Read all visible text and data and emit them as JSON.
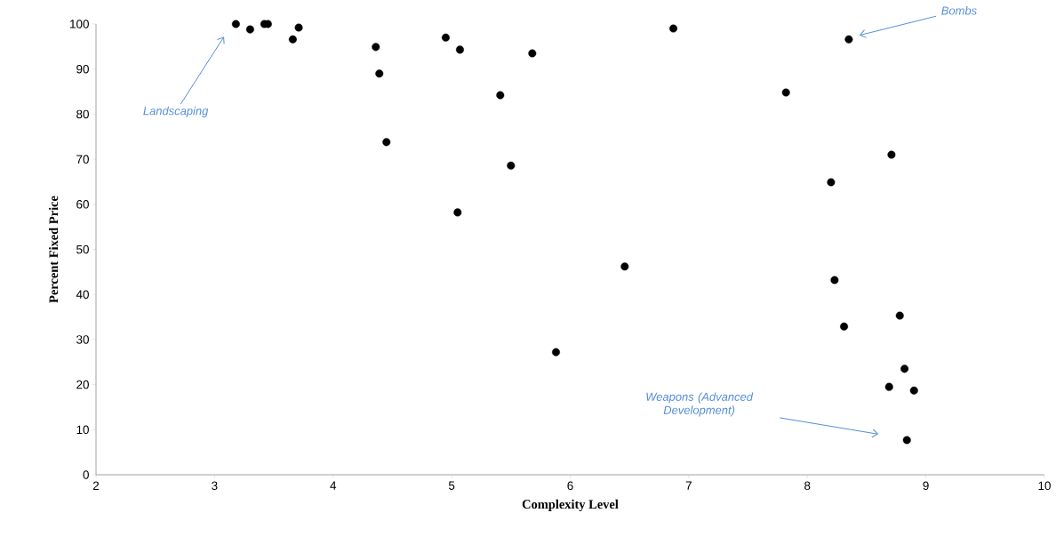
{
  "chart_data": {
    "type": "scatter",
    "xlabel": "Complexity Level",
    "ylabel": "Percent Fixed Price",
    "x": [
      3.18,
      3.3,
      3.42,
      3.45,
      3.66,
      3.71,
      4.36,
      4.39,
      4.45,
      4.95,
      5.07,
      5.05,
      5.41,
      5.5,
      5.68,
      5.88,
      6.46,
      6.87,
      7.82,
      8.35,
      8.2,
      8.23,
      8.31,
      8.71,
      8.78,
      8.82,
      8.69,
      8.9,
      8.84
    ],
    "values": [
      100,
      98.8,
      100,
      100,
      96.6,
      99.2,
      94.9,
      89.0,
      73.8,
      97.0,
      94.3,
      58.2,
      84.2,
      68.6,
      93.5,
      27.2,
      46.2,
      99.0,
      84.8,
      96.6,
      64.9,
      43.2,
      32.9,
      71.0,
      35.3,
      23.5,
      19.5,
      18.7,
      7.7
    ],
    "color": "#000000",
    "marker": "circle",
    "xlim": [
      2,
      10
    ],
    "xticks": [
      2,
      3,
      4,
      5,
      6,
      7,
      8,
      9,
      10
    ],
    "ylim": [
      0,
      100
    ],
    "yticks": [
      0,
      10,
      20,
      30,
      40,
      50,
      60,
      70,
      80,
      90,
      100
    ],
    "annotations": [
      "Landscaping",
      "Bombs",
      "Weapons (Advanced Development)"
    ]
  }
}
